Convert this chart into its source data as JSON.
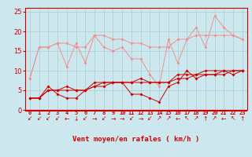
{
  "bg_color": "#cce8ee",
  "grid_color": "#aacccc",
  "x_labels": [
    "0",
    "1",
    "2",
    "3",
    "4",
    "5",
    "6",
    "7",
    "8",
    "9",
    "10",
    "11",
    "12",
    "13",
    "14",
    "15",
    "16",
    "17",
    "18",
    "19",
    "20",
    "21",
    "22",
    "23"
  ],
  "xlabel": "Vent moyen/en rafales ( km/h )",
  "ylim": [
    0,
    26
  ],
  "yticks": [
    0,
    5,
    10,
    15,
    20,
    25
  ],
  "line_light_1": [
    8,
    16,
    16,
    17,
    11,
    17,
    12,
    19,
    16,
    15,
    16,
    13,
    13,
    9,
    6,
    18,
    12,
    18,
    21,
    16,
    24,
    21,
    19,
    18
  ],
  "line_light_2": [
    8,
    16,
    16,
    17,
    17,
    16,
    16,
    19,
    19,
    18,
    18,
    17,
    17,
    16,
    16,
    16,
    18,
    18,
    19,
    19,
    19,
    19,
    19,
    18
  ],
  "line_dark_1": [
    3,
    3,
    6,
    4,
    3,
    3,
    5,
    6,
    7,
    7,
    7,
    4,
    4,
    3,
    2,
    6,
    7,
    10,
    8,
    9,
    9,
    10,
    9,
    10
  ],
  "line_dark_2": [
    3,
    3,
    5,
    5,
    5,
    5,
    5,
    6,
    6,
    7,
    7,
    7,
    7,
    7,
    7,
    7,
    8,
    8,
    9,
    9,
    9,
    9,
    10,
    10
  ],
  "line_dark_3": [
    3,
    3,
    5,
    5,
    6,
    5,
    5,
    7,
    7,
    7,
    7,
    7,
    8,
    7,
    7,
    7,
    9,
    9,
    9,
    10,
    10,
    10,
    10,
    10
  ],
  "color_light": "#f09090",
  "color_dark": "#cc0000",
  "wind_arrows": [
    "↙",
    "↙",
    "↙",
    "↙",
    "←",
    "↓",
    "↙",
    "→",
    "↙",
    "→",
    "→",
    "↙",
    "→",
    "↙",
    "↗",
    "↗",
    "←",
    "↖",
    "↗",
    "↑",
    "↗",
    "←",
    "↖",
    "↑"
  ]
}
